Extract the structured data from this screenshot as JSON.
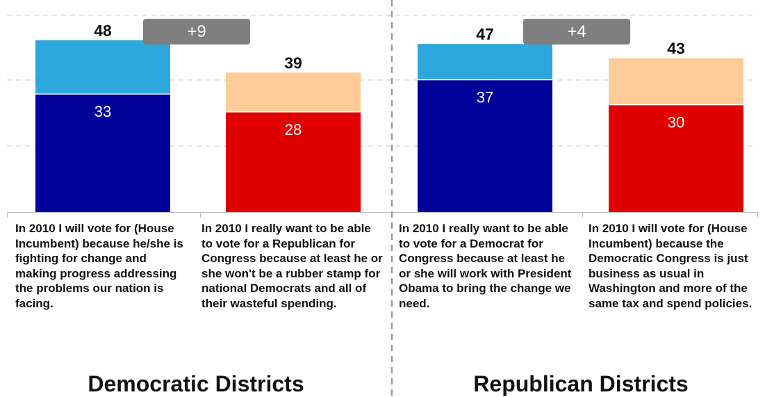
{
  "chart_data": {
    "type": "bar",
    "stacked": true,
    "ylim": [
      0,
      55
    ],
    "grid": true,
    "groups": [
      {
        "title": "Democratic Districts",
        "difference_label": "+9",
        "bars": [
          {
            "total": 48,
            "inner": 33,
            "inner_color": "#000099",
            "outer_color": "#2ea6de",
            "description": "In 2010 I will vote for (House Incumbent) because he/she is fighting for change and making progress addressing the problems our nation is facing."
          },
          {
            "total": 39,
            "inner": 28,
            "inner_color": "#e00000",
            "outer_color": "#ffcc99",
            "description": "In 2010 I really want to be able to vote for a Republican for Congress because at least he or she won't be a rubber stamp for national Democrats and all of their wasteful spending."
          }
        ]
      },
      {
        "title": "Republican Districts",
        "difference_label": "+4",
        "bars": [
          {
            "total": 47,
            "inner": 37,
            "inner_color": "#000099",
            "outer_color": "#2ea6de",
            "description": "In 2010 I really want to be able to vote for a Democrat for Congress because at least he or she will work with President Obama to bring the change we need."
          },
          {
            "total": 43,
            "inner": 30,
            "inner_color": "#e00000",
            "outer_color": "#ffcc99",
            "description": "In 2010 I will vote for (House Incumbent) because the Democratic Congress is just business as usual in Washington and more of the same tax and spend policies."
          }
        ]
      }
    ]
  }
}
